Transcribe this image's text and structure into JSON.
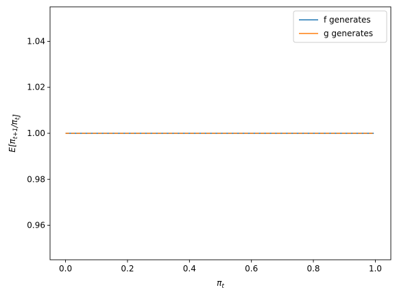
{
  "chart_data": {
    "type": "line",
    "x": [
      0.0,
      0.995
    ],
    "series": [
      {
        "name": "f generates",
        "values": [
          1.0,
          1.0
        ],
        "color": "#1f77b4",
        "line_style": "solid"
      },
      {
        "name": "g generates",
        "values": [
          1.0,
          1.0
        ],
        "color": "#ff7f0e",
        "line_style": "dashed"
      }
    ],
    "xlim": [
      -0.05,
      1.05
    ],
    "ylim": [
      0.945,
      1.055
    ],
    "xticks": [
      0.0,
      0.2,
      0.4,
      0.6,
      0.8,
      1.0
    ],
    "xtick_labels": [
      "0.0",
      "0.2",
      "0.4",
      "0.6",
      "0.8",
      "1.0"
    ],
    "yticks": [
      0.96,
      0.98,
      1.0,
      1.02,
      1.04
    ],
    "ytick_labels": [
      "0.96",
      "0.98",
      "1.00",
      "1.02",
      "1.04"
    ],
    "xlabel": "π_t",
    "ylabel": "E[π_{t+1}/π_t]",
    "legend_position": "top-right",
    "grid": false
  }
}
